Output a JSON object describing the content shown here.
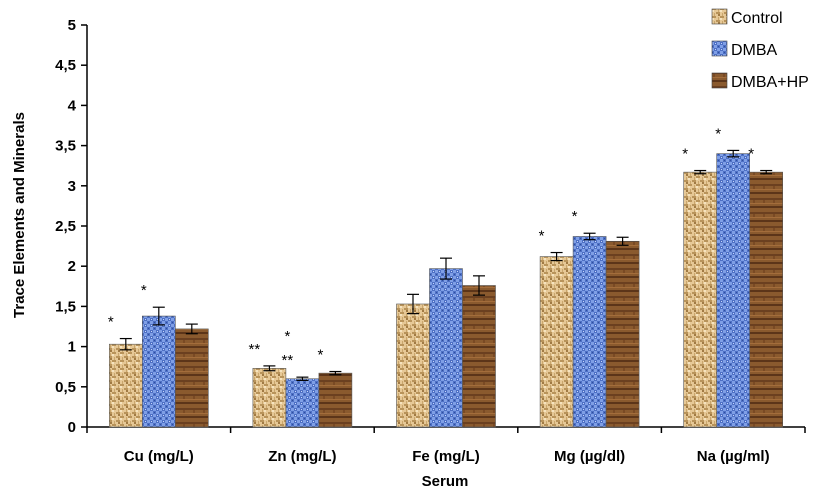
{
  "chart_data": {
    "type": "bar",
    "xlabel": "Serum",
    "ylabel": "Trace Elements and Minerals",
    "ylim": [
      0,
      5
    ],
    "yticks": [
      "0",
      "0,5",
      "1",
      "1,5",
      "2",
      "2,5",
      "3",
      "3,5",
      "4",
      "4,5",
      "5"
    ],
    "categories": [
      "Cu (mg/L)",
      "Zn (mg/L)",
      "Fe (mg/L)",
      "Mg (µg/dl)",
      "Na (µg/ml)"
    ],
    "series": [
      {
        "name": "Control",
        "color": "#d9b98a",
        "pattern": "weave",
        "values": [
          1.03,
          0.73,
          1.53,
          2.12,
          3.17
        ],
        "errors": [
          0.07,
          0.03,
          0.12,
          0.05,
          0.02
        ],
        "significance": [
          "*",
          "**",
          "",
          "*",
          "*"
        ]
      },
      {
        "name": "DMBA",
        "color": "#6f8fd9",
        "pattern": "checker",
        "values": [
          1.38,
          0.6,
          1.97,
          2.37,
          3.4
        ],
        "errors": [
          0.11,
          0.02,
          0.13,
          0.04,
          0.04
        ],
        "significance": [
          "*",
          "*\n**",
          "",
          "*",
          "*"
        ]
      },
      {
        "name": "DMBA+HP",
        "color": "#7a4a22",
        "pattern": "wood",
        "values": [
          1.22,
          0.67,
          1.76,
          2.31,
          3.17
        ],
        "errors": [
          0.06,
          0.02,
          0.12,
          0.05,
          0.02
        ],
        "significance": [
          "",
          "*",
          "",
          "",
          "*"
        ]
      }
    ],
    "grid": false,
    "legend_position": "top-right"
  }
}
